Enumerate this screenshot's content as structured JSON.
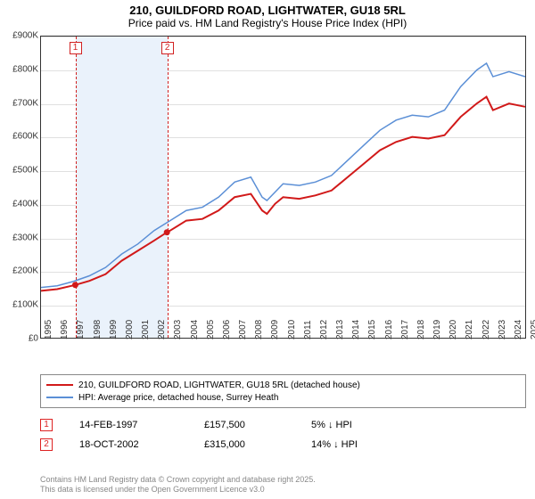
{
  "title": "210, GUILDFORD ROAD, LIGHTWATER, GU18 5RL",
  "subtitle": "Price paid vs. HM Land Registry's House Price Index (HPI)",
  "chart": {
    "type": "line",
    "background_color": "#ffffff",
    "grid_color": "#e0e0e0",
    "border_color": "#333333",
    "ylim": [
      0,
      900000
    ],
    "ytick_step": 100000,
    "yticks_labels": [
      "£0",
      "£100K",
      "£200K",
      "£300K",
      "£400K",
      "£500K",
      "£600K",
      "£700K",
      "£800K",
      "£900K"
    ],
    "xlim": [
      1995,
      2025
    ],
    "xticks": [
      1995,
      1996,
      1997,
      1998,
      1999,
      2000,
      2001,
      2002,
      2003,
      2004,
      2005,
      2006,
      2007,
      2008,
      2009,
      2010,
      2011,
      2012,
      2013,
      2014,
      2015,
      2016,
      2017,
      2018,
      2019,
      2020,
      2021,
      2022,
      2023,
      2024,
      2025
    ],
    "label_fontsize": 10,
    "bands": {
      "start": 1997.12,
      "end": 2002.8,
      "color": "#eaf2fb"
    },
    "dashed_markers": [
      {
        "x": 1997.12,
        "label": "1",
        "color": "#d22222"
      },
      {
        "x": 2002.8,
        "label": "2",
        "color": "#d22222"
      }
    ],
    "series": [
      {
        "name": "property",
        "color": "#d11919",
        "width": 2,
        "label": "210, GUILDFORD ROAD, LIGHTWATER, GU18 5RL (detached house)",
        "points": [
          [
            1995,
            140000
          ],
          [
            1996,
            145000
          ],
          [
            1997.12,
            157500
          ],
          [
            1998,
            170000
          ],
          [
            1999,
            190000
          ],
          [
            2000,
            230000
          ],
          [
            2001,
            260000
          ],
          [
            2002,
            290000
          ],
          [
            2002.8,
            315000
          ],
          [
            2003,
            320000
          ],
          [
            2004,
            350000
          ],
          [
            2005,
            355000
          ],
          [
            2006,
            380000
          ],
          [
            2007,
            420000
          ],
          [
            2008,
            430000
          ],
          [
            2008.7,
            380000
          ],
          [
            2009,
            370000
          ],
          [
            2009.5,
            400000
          ],
          [
            2010,
            420000
          ],
          [
            2011,
            415000
          ],
          [
            2012,
            425000
          ],
          [
            2013,
            440000
          ],
          [
            2014,
            480000
          ],
          [
            2015,
            520000
          ],
          [
            2016,
            560000
          ],
          [
            2017,
            585000
          ],
          [
            2018,
            600000
          ],
          [
            2019,
            595000
          ],
          [
            2020,
            605000
          ],
          [
            2021,
            660000
          ],
          [
            2022,
            700000
          ],
          [
            2022.6,
            720000
          ],
          [
            2023,
            680000
          ],
          [
            2024,
            700000
          ],
          [
            2025,
            690000
          ]
        ],
        "dots": [
          [
            1997.12,
            157500
          ],
          [
            2002.8,
            315000
          ]
        ]
      },
      {
        "name": "hpi",
        "color": "#5b8fd6",
        "width": 1.5,
        "label": "HPI: Average price, detached house, Surrey Heath",
        "points": [
          [
            1995,
            150000
          ],
          [
            1996,
            155000
          ],
          [
            1997,
            168000
          ],
          [
            1998,
            185000
          ],
          [
            1999,
            210000
          ],
          [
            2000,
            250000
          ],
          [
            2001,
            280000
          ],
          [
            2002,
            320000
          ],
          [
            2003,
            350000
          ],
          [
            2004,
            380000
          ],
          [
            2005,
            390000
          ],
          [
            2006,
            420000
          ],
          [
            2007,
            465000
          ],
          [
            2008,
            480000
          ],
          [
            2008.7,
            420000
          ],
          [
            2009,
            410000
          ],
          [
            2010,
            460000
          ],
          [
            2011,
            455000
          ],
          [
            2012,
            465000
          ],
          [
            2013,
            485000
          ],
          [
            2014,
            530000
          ],
          [
            2015,
            575000
          ],
          [
            2016,
            620000
          ],
          [
            2017,
            650000
          ],
          [
            2018,
            665000
          ],
          [
            2019,
            660000
          ],
          [
            2020,
            680000
          ],
          [
            2021,
            750000
          ],
          [
            2022,
            800000
          ],
          [
            2022.6,
            820000
          ],
          [
            2023,
            780000
          ],
          [
            2024,
            795000
          ],
          [
            2025,
            780000
          ]
        ]
      }
    ]
  },
  "legend": {
    "items": [
      {
        "color": "#d11919",
        "label": "210, GUILDFORD ROAD, LIGHTWATER, GU18 5RL (detached house)"
      },
      {
        "color": "#5b8fd6",
        "label": "HPI: Average price, detached house, Surrey Heath"
      }
    ]
  },
  "sales": [
    {
      "idx": "1",
      "date": "14-FEB-1997",
      "price": "£157,500",
      "hpi": "5% ↓ HPI"
    },
    {
      "idx": "2",
      "date": "18-OCT-2002",
      "price": "£315,000",
      "hpi": "14% ↓ HPI"
    }
  ],
  "attribution": {
    "line1": "Contains HM Land Registry data © Crown copyright and database right 2025.",
    "line2": "This data is licensed under the Open Government Licence v3.0"
  }
}
